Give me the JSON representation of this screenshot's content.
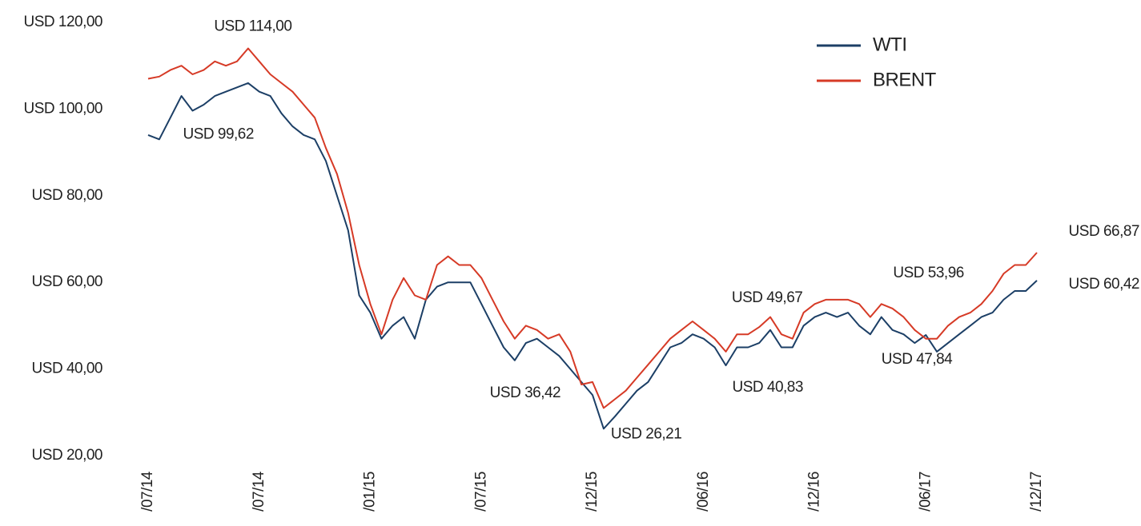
{
  "chart_data": {
    "type": "line",
    "ylim": [
      20,
      120
    ],
    "yticks": [
      {
        "value": 20,
        "label": "USD 20,00"
      },
      {
        "value": 40,
        "label": "USD 40,00"
      },
      {
        "value": 60,
        "label": "USD 60,00"
      },
      {
        "value": 80,
        "label": "USD 80,00"
      },
      {
        "value": 100,
        "label": "USD 100,00"
      },
      {
        "value": 120,
        "label": "USD 120,00"
      }
    ],
    "xlim": [
      0,
      80
    ],
    "xticks": [
      {
        "value": 0,
        "label": "/07/14"
      },
      {
        "value": 10,
        "label": "/07/14"
      },
      {
        "value": 20,
        "label": "/01/15"
      },
      {
        "value": 30,
        "label": "/07/15"
      },
      {
        "value": 40,
        "label": "/12/15"
      },
      {
        "value": 50,
        "label": "/06/16"
      },
      {
        "value": 60,
        "label": "/12/16"
      },
      {
        "value": 70,
        "label": "/06/17"
      },
      {
        "value": 80,
        "label": "/12/17"
      }
    ],
    "legend": "top-right",
    "series": [
      {
        "name": "WTI",
        "color": "#1c3f66",
        "label_color": "#4f7ca8",
        "values": [
          94,
          93,
          98,
          103,
          99.62,
          101,
          103,
          104,
          105,
          106,
          104,
          103,
          99,
          96,
          94,
          93,
          88,
          80,
          72,
          57,
          53,
          47,
          50,
          52,
          47,
          56,
          59,
          60,
          60,
          60,
          55,
          50,
          45,
          42,
          46,
          47,
          45,
          43,
          40,
          37,
          34,
          26.21,
          29,
          32,
          35,
          37,
          41,
          45,
          46,
          48,
          47,
          45,
          40.83,
          45,
          45,
          46,
          49,
          45,
          45,
          50,
          52,
          53,
          52,
          53,
          50,
          48,
          52,
          49,
          48,
          46,
          47.84,
          44,
          46,
          48,
          50,
          52,
          53,
          56,
          58,
          58,
          60.42
        ],
        "value_labels": [
          null,
          null,
          null,
          null,
          "USD 99,62",
          null,
          null,
          null,
          null,
          null,
          null,
          null,
          null,
          null,
          null,
          null,
          null,
          null,
          null,
          null,
          null,
          null,
          null,
          null,
          null,
          null,
          null,
          null,
          null,
          null,
          null,
          null,
          null,
          null,
          null,
          null,
          null,
          null,
          null,
          null,
          null,
          "USD 26,21",
          null,
          null,
          null,
          null,
          null,
          null,
          null,
          null,
          null,
          null,
          "USD 40,83",
          null,
          null,
          null,
          null,
          null,
          null,
          null,
          null,
          null,
          null,
          null,
          null,
          null,
          null,
          null,
          null,
          null,
          "USD 47,84",
          null,
          null,
          null,
          null,
          null,
          null,
          null,
          null,
          null,
          "USD 60,42"
        ]
      },
      {
        "name": "BRENT",
        "color": "#d63a26",
        "label_color": "#e2513d",
        "values": [
          107,
          107.5,
          109,
          110,
          108,
          109,
          111,
          110,
          111,
          114,
          111,
          108,
          106,
          104,
          101,
          98,
          91,
          85,
          76,
          64,
          55,
          48,
          56,
          61,
          57,
          56,
          64,
          66,
          64,
          64,
          61,
          56,
          51,
          47,
          50,
          49,
          47,
          48,
          44,
          36.42,
          37,
          31,
          33,
          35,
          38,
          41,
          44,
          47,
          49,
          51,
          49,
          47,
          44,
          48,
          48,
          49.67,
          52,
          48,
          47,
          53,
          55,
          56,
          56,
          56,
          55,
          52,
          55,
          53.96,
          52,
          49,
          47,
          47,
          50,
          52,
          53,
          55,
          58,
          62,
          64,
          64,
          66.87
        ],
        "value_labels": [
          null,
          null,
          null,
          null,
          null,
          null,
          null,
          null,
          null,
          "USD 114,00",
          null,
          null,
          null,
          null,
          null,
          null,
          null,
          null,
          null,
          null,
          null,
          null,
          null,
          null,
          null,
          null,
          null,
          null,
          null,
          null,
          null,
          null,
          null,
          null,
          null,
          null,
          null,
          null,
          null,
          "USD 36,42",
          null,
          null,
          null,
          null,
          null,
          null,
          null,
          null,
          null,
          null,
          null,
          null,
          null,
          null,
          null,
          "USD 49,67",
          null,
          null,
          null,
          null,
          null,
          null,
          null,
          null,
          null,
          null,
          null,
          "USD 53,96",
          null,
          null,
          null,
          null,
          null,
          null,
          null,
          null,
          null,
          null,
          null,
          null,
          "USD 66,87"
        ]
      }
    ]
  }
}
